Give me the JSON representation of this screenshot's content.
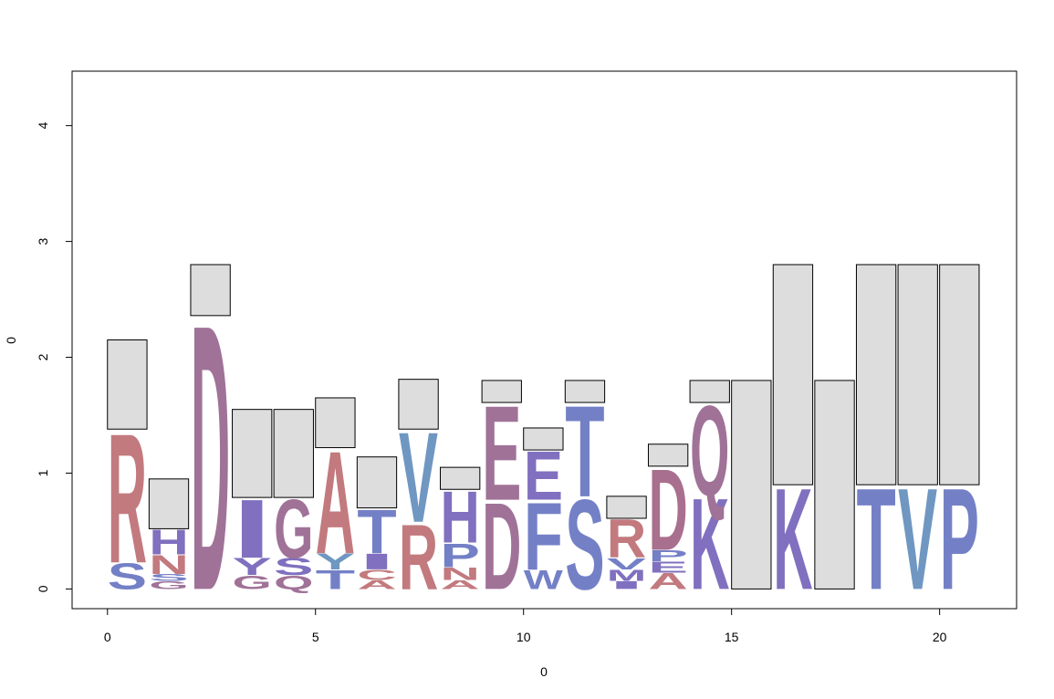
{
  "chart_data": {
    "type": "sequence-logo",
    "xlabel": "0",
    "ylabel": "0",
    "xlim": [
      -0.85,
      21.85
    ],
    "ylim": [
      -0.17,
      4.47
    ],
    "x_ticks": [
      0,
      5,
      10,
      15,
      20
    ],
    "y_ticks": [
      0,
      1,
      2,
      3,
      4
    ],
    "colors": {
      "box_fill": "#dddddd",
      "box_stroke": "#000000",
      "red": "#c27a7e",
      "blue": "#7480c6",
      "purple": "#8070bf",
      "mauve": "#a07298",
      "steel": "#6f97c1",
      "wine": "#a96f8e"
    },
    "positions": [
      {
        "x": 0,
        "box": [
          1.38,
          2.15
        ],
        "letters": [
          {
            "ch": "S",
            "y0": 0.0,
            "y1": 0.23,
            "color": "blue"
          },
          {
            "ch": "R",
            "y0": 0.23,
            "y1": 1.38,
            "color": "red"
          }
        ]
      },
      {
        "x": 1,
        "box": [
          0.52,
          0.95
        ],
        "letters": [
          {
            "ch": "G",
            "y0": 0.0,
            "y1": 0.07,
            "color": "mauve"
          },
          {
            "ch": "S",
            "y0": 0.07,
            "y1": 0.13,
            "color": "blue"
          },
          {
            "ch": "N",
            "y0": 0.13,
            "y1": 0.3,
            "color": "red"
          },
          {
            "ch": "H",
            "y0": 0.3,
            "y1": 0.52,
            "color": "purple"
          }
        ]
      },
      {
        "x": 2,
        "box": [
          2.36,
          2.8
        ],
        "letters": [
          {
            "ch": "D",
            "y0": 0.0,
            "y1": 2.36,
            "color": "mauve"
          }
        ]
      },
      {
        "x": 3,
        "box": [
          0.79,
          1.55
        ],
        "letters": [
          {
            "ch": "G",
            "y0": 0.0,
            "y1": 0.12,
            "color": "mauve"
          },
          {
            "ch": "Y",
            "y0": 0.12,
            "y1": 0.27,
            "color": "purple"
          },
          {
            "ch": "I",
            "y0": 0.27,
            "y1": 0.79,
            "color": "purple"
          }
        ]
      },
      {
        "x": 4,
        "box": [
          0.79,
          1.55
        ],
        "letters": [
          {
            "ch": "Q",
            "y0": 0.0,
            "y1": 0.12,
            "color": "mauve"
          },
          {
            "ch": "S",
            "y0": 0.12,
            "y1": 0.27,
            "color": "purple"
          },
          {
            "ch": "G",
            "y0": 0.27,
            "y1": 0.79,
            "color": "mauve"
          }
        ]
      },
      {
        "x": 5,
        "box": [
          1.22,
          1.65
        ],
        "letters": [
          {
            "ch": "T",
            "y0": 0.0,
            "y1": 0.17,
            "color": "blue"
          },
          {
            "ch": "Y",
            "y0": 0.17,
            "y1": 0.31,
            "color": "steel"
          },
          {
            "ch": "A",
            "y0": 0.31,
            "y1": 1.22,
            "color": "red"
          }
        ]
      },
      {
        "x": 6,
        "box": [
          0.7,
          1.14
        ],
        "letters": [
          {
            "ch": "A",
            "y0": 0.0,
            "y1": 0.08,
            "color": "red"
          },
          {
            "ch": "C",
            "y0": 0.08,
            "y1": 0.17,
            "color": "red"
          },
          {
            "ch": "I",
            "y0": 0.17,
            "y1": 0.31,
            "color": "purple"
          },
          {
            "ch": "T",
            "y0": 0.31,
            "y1": 0.7,
            "color": "blue"
          }
        ]
      },
      {
        "x": 7,
        "box": [
          1.38,
          1.81
        ],
        "letters": [
          {
            "ch": "R",
            "y0": 0.0,
            "y1": 0.58,
            "color": "red"
          },
          {
            "ch": "V",
            "y0": 0.58,
            "y1": 1.38,
            "color": "steel"
          }
        ]
      },
      {
        "x": 8,
        "box": [
          0.86,
          1.05
        ],
        "letters": [
          {
            "ch": "A",
            "y0": 0.0,
            "y1": 0.08,
            "color": "red"
          },
          {
            "ch": "N",
            "y0": 0.08,
            "y1": 0.19,
            "color": "red"
          },
          {
            "ch": "P",
            "y0": 0.19,
            "y1": 0.4,
            "color": "blue"
          },
          {
            "ch": "H",
            "y0": 0.4,
            "y1": 0.86,
            "color": "purple"
          }
        ]
      },
      {
        "x": 9,
        "box": [
          1.61,
          1.8
        ],
        "letters": [
          {
            "ch": "D",
            "y0": 0.0,
            "y1": 0.77,
            "color": "mauve"
          },
          {
            "ch": "E",
            "y0": 0.77,
            "y1": 1.61,
            "color": "mauve"
          }
        ]
      },
      {
        "x": 10,
        "box": [
          1.2,
          1.39
        ],
        "letters": [
          {
            "ch": "W",
            "y0": 0.0,
            "y1": 0.17,
            "color": "blue"
          },
          {
            "ch": "F",
            "y0": 0.17,
            "y1": 0.77,
            "color": "blue"
          },
          {
            "ch": "E",
            "y0": 0.77,
            "y1": 1.2,
            "color": "purple"
          }
        ]
      },
      {
        "x": 11,
        "box": [
          1.61,
          1.8
        ],
        "letters": [
          {
            "ch": "S",
            "y0": 0.0,
            "y1": 0.8,
            "color": "blue"
          },
          {
            "ch": "T",
            "y0": 0.8,
            "y1": 1.61,
            "color": "blue"
          }
        ]
      },
      {
        "x": 12,
        "box": [
          0.61,
          0.8
        ],
        "letters": [
          {
            "ch": "I",
            "y0": 0.0,
            "y1": 0.07,
            "color": "purple"
          },
          {
            "ch": "M",
            "y0": 0.07,
            "y1": 0.17,
            "color": "purple"
          },
          {
            "ch": "V",
            "y0": 0.17,
            "y1": 0.27,
            "color": "blue"
          },
          {
            "ch": "R",
            "y0": 0.27,
            "y1": 0.61,
            "color": "red"
          }
        ]
      },
      {
        "x": 13,
        "box": [
          1.06,
          1.25
        ],
        "letters": [
          {
            "ch": "A",
            "y0": 0.0,
            "y1": 0.14,
            "color": "red"
          },
          {
            "ch": "E",
            "y0": 0.14,
            "y1": 0.24,
            "color": "purple"
          },
          {
            "ch": "P",
            "y0": 0.24,
            "y1": 0.34,
            "color": "blue"
          },
          {
            "ch": "D",
            "y0": 0.34,
            "y1": 1.06,
            "color": "wine"
          }
        ]
      },
      {
        "x": 14,
        "box": [
          1.61,
          1.8
        ],
        "letters": [
          {
            "ch": "K",
            "y0": 0.0,
            "y1": 0.81,
            "color": "purple"
          },
          {
            "ch": "Q",
            "y0": 0.81,
            "y1": 1.61,
            "color": "mauve"
          }
        ]
      },
      {
        "x": 15,
        "box": [
          0.0,
          1.8
        ],
        "letters": []
      },
      {
        "x": 16,
        "box": [
          0.9,
          2.8
        ],
        "letters": [
          {
            "ch": "K",
            "y0": 0.0,
            "y1": 0.9,
            "color": "purple"
          }
        ]
      },
      {
        "x": 17,
        "box": [
          0.0,
          1.8
        ],
        "letters": []
      },
      {
        "x": 18,
        "box": [
          0.9,
          2.8
        ],
        "letters": [
          {
            "ch": "T",
            "y0": 0.0,
            "y1": 0.9,
            "color": "blue"
          }
        ]
      },
      {
        "x": 19,
        "box": [
          0.9,
          2.8
        ],
        "letters": [
          {
            "ch": "V",
            "y0": 0.0,
            "y1": 0.9,
            "color": "steel"
          }
        ]
      },
      {
        "x": 20,
        "box": [
          0.9,
          2.8
        ],
        "letters": [
          {
            "ch": "P",
            "y0": 0.0,
            "y1": 0.9,
            "color": "blue"
          }
        ]
      }
    ]
  }
}
